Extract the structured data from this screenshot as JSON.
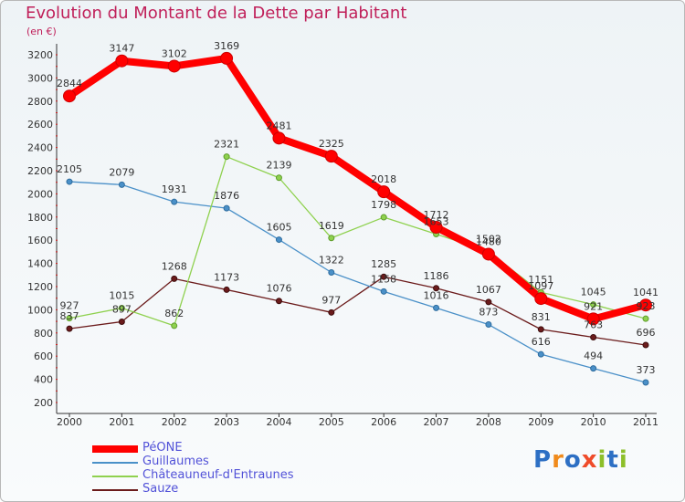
{
  "title": "Evolution du Montant de la Dette par Habitant",
  "subtitle": "(en €)",
  "logo": {
    "text": "Proxiti",
    "letter_colors": [
      "#2d6fc4",
      "#f08a1c",
      "#2d6fc4",
      "#ef4b2a",
      "#8dbf2a",
      "#2d6fc4",
      "#8dbf2a"
    ]
  },
  "chart_data": {
    "type": "line",
    "title": "Evolution du Montant de la Dette par Habitant",
    "ylabel": "(en €)",
    "xlabel": "",
    "x": [
      "2000",
      "2001",
      "2002",
      "2003",
      "2004",
      "2005",
      "2006",
      "2007",
      "2008",
      "2009",
      "2010",
      "2011"
    ],
    "ylim": [
      200,
      3200
    ],
    "yticks": [
      200,
      400,
      600,
      800,
      1000,
      1200,
      1400,
      1600,
      1800,
      2000,
      2200,
      2400,
      2600,
      2800,
      3000,
      3200
    ],
    "grid": false,
    "legend_position": "bottom-left",
    "series": [
      {
        "name": "PéONE",
        "color": "#ff0000",
        "values": [
          2844,
          3147,
          3102,
          3169,
          2481,
          2325,
          2018,
          1712,
          1480,
          1097,
          921,
          1041
        ]
      },
      {
        "name": "Guillaumes",
        "color": "#4a90c8",
        "values": [
          2105,
          2079,
          1931,
          1876,
          1605,
          1322,
          1158,
          1016,
          873,
          616,
          494,
          373
        ]
      },
      {
        "name": "Châteauneuf-d'Entraunes",
        "color": "#8fd14f",
        "values": [
          927,
          1015,
          862,
          2321,
          2139,
          1619,
          1798,
          1653,
          1502,
          1151,
          1045,
          923
        ]
      },
      {
        "name": "Sauze",
        "color": "#6b1b1b",
        "values": [
          837,
          897,
          1268,
          1173,
          1076,
          977,
          1285,
          1186,
          1067,
          831,
          763,
          696
        ]
      }
    ]
  }
}
